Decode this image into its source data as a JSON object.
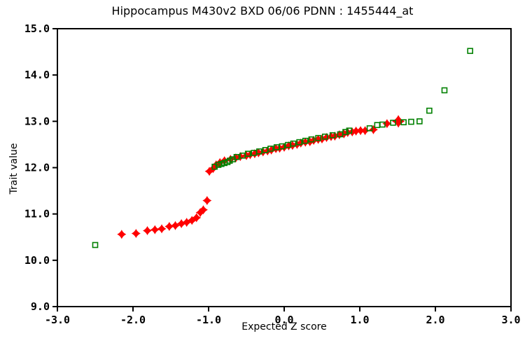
{
  "page": {
    "background": "#ffffff",
    "text_color": "#000000"
  },
  "chart_data": {
    "type": "scatter",
    "title": "Hippocampus M430v2 BXD 06/06 PDNN : 1455444_at",
    "xlabel": "Expected Z score",
    "ylabel": "Trait value",
    "xlim": [
      -3.0,
      3.0
    ],
    "ylim": [
      9.0,
      15.0
    ],
    "x_ticks": [
      "-3.0",
      "-2.0",
      "-1.0",
      "0.0",
      "1.0",
      "2.0",
      "3.0"
    ],
    "y_ticks": [
      "15.0",
      "14.0",
      "13.0",
      "12.0",
      "11.0",
      "10.0",
      "9.0"
    ],
    "grid": false,
    "legend": "none",
    "axis_color": "#000000",
    "series": [
      {
        "name": "trait-values-diamonds",
        "marker": "filled-diamond",
        "color": "#ff0000",
        "size": 6.5,
        "points": [
          [
            -2.15,
            10.56
          ],
          [
            -1.96,
            10.58
          ],
          [
            -1.81,
            10.64
          ],
          [
            -1.71,
            10.66
          ],
          [
            -1.62,
            10.68
          ],
          [
            -1.52,
            10.73
          ],
          [
            -1.44,
            10.75
          ],
          [
            -1.36,
            10.79
          ],
          [
            -1.29,
            10.82
          ],
          [
            -1.22,
            10.86
          ],
          [
            -1.16,
            10.92
          ],
          [
            -1.11,
            11.03
          ],
          [
            -1.07,
            11.09
          ],
          [
            -1.02,
            11.29
          ],
          [
            -0.99,
            11.92
          ],
          [
            -0.94,
            11.98
          ],
          [
            -0.9,
            12.06
          ],
          [
            -0.85,
            12.11
          ],
          [
            -0.79,
            12.15
          ],
          [
            -0.71,
            12.18
          ],
          [
            -0.64,
            12.21
          ],
          [
            -0.58,
            12.24
          ],
          [
            -0.5,
            12.26
          ],
          [
            -0.45,
            12.28
          ],
          [
            -0.39,
            12.3
          ],
          [
            -0.34,
            12.32
          ],
          [
            -0.28,
            12.34
          ],
          [
            -0.22,
            12.36
          ],
          [
            -0.17,
            12.38
          ],
          [
            -0.11,
            12.41
          ],
          [
            -0.06,
            12.42
          ],
          [
            0.0,
            12.44
          ],
          [
            0.06,
            12.47
          ],
          [
            0.11,
            12.48
          ],
          [
            0.17,
            12.5
          ],
          [
            0.22,
            12.53
          ],
          [
            0.28,
            12.55
          ],
          [
            0.34,
            12.56
          ],
          [
            0.39,
            12.59
          ],
          [
            0.45,
            12.61
          ],
          [
            0.5,
            12.62
          ],
          [
            0.56,
            12.65
          ],
          [
            0.62,
            12.67
          ],
          [
            0.67,
            12.68
          ],
          [
            0.73,
            12.71
          ],
          [
            0.79,
            12.73
          ],
          [
            0.84,
            12.76
          ],
          [
            0.9,
            12.77
          ],
          [
            0.95,
            12.79
          ],
          [
            1.01,
            12.8
          ],
          [
            1.07,
            12.8
          ],
          [
            1.18,
            12.82
          ],
          [
            1.36,
            12.95
          ],
          [
            1.51,
            13.0,
            9
          ]
        ]
      },
      {
        "name": "normal-reference-squares",
        "marker": "open-square",
        "color": "#008000",
        "size": 7,
        "points": [
          [
            -2.5,
            10.33
          ],
          [
            -0.92,
            12.02
          ],
          [
            -0.87,
            12.06
          ],
          [
            -0.83,
            12.08
          ],
          [
            -0.79,
            12.1
          ],
          [
            -0.75,
            12.12
          ],
          [
            -0.72,
            12.15
          ],
          [
            -0.68,
            12.18
          ],
          [
            -0.63,
            12.23
          ],
          [
            -0.55,
            12.26
          ],
          [
            -0.48,
            12.3
          ],
          [
            -0.4,
            12.32
          ],
          [
            -0.33,
            12.35
          ],
          [
            -0.25,
            12.38
          ],
          [
            -0.18,
            12.41
          ],
          [
            -0.1,
            12.44
          ],
          [
            -0.03,
            12.46
          ],
          [
            0.05,
            12.49
          ],
          [
            0.12,
            12.52
          ],
          [
            0.2,
            12.55
          ],
          [
            0.28,
            12.58
          ],
          [
            0.36,
            12.61
          ],
          [
            0.45,
            12.64
          ],
          [
            0.54,
            12.67
          ],
          [
            0.64,
            12.7
          ],
          [
            0.74,
            12.72
          ],
          [
            0.81,
            12.77
          ],
          [
            0.86,
            12.8
          ],
          [
            1.13,
            12.85
          ],
          [
            1.23,
            12.92
          ],
          [
            1.3,
            12.93
          ],
          [
            1.44,
            12.97
          ],
          [
            1.58,
            12.98
          ],
          [
            1.68,
            12.99
          ],
          [
            1.79,
            13.0
          ],
          [
            1.92,
            13.23
          ],
          [
            2.12,
            13.67
          ],
          [
            2.46,
            14.52
          ]
        ]
      }
    ]
  }
}
